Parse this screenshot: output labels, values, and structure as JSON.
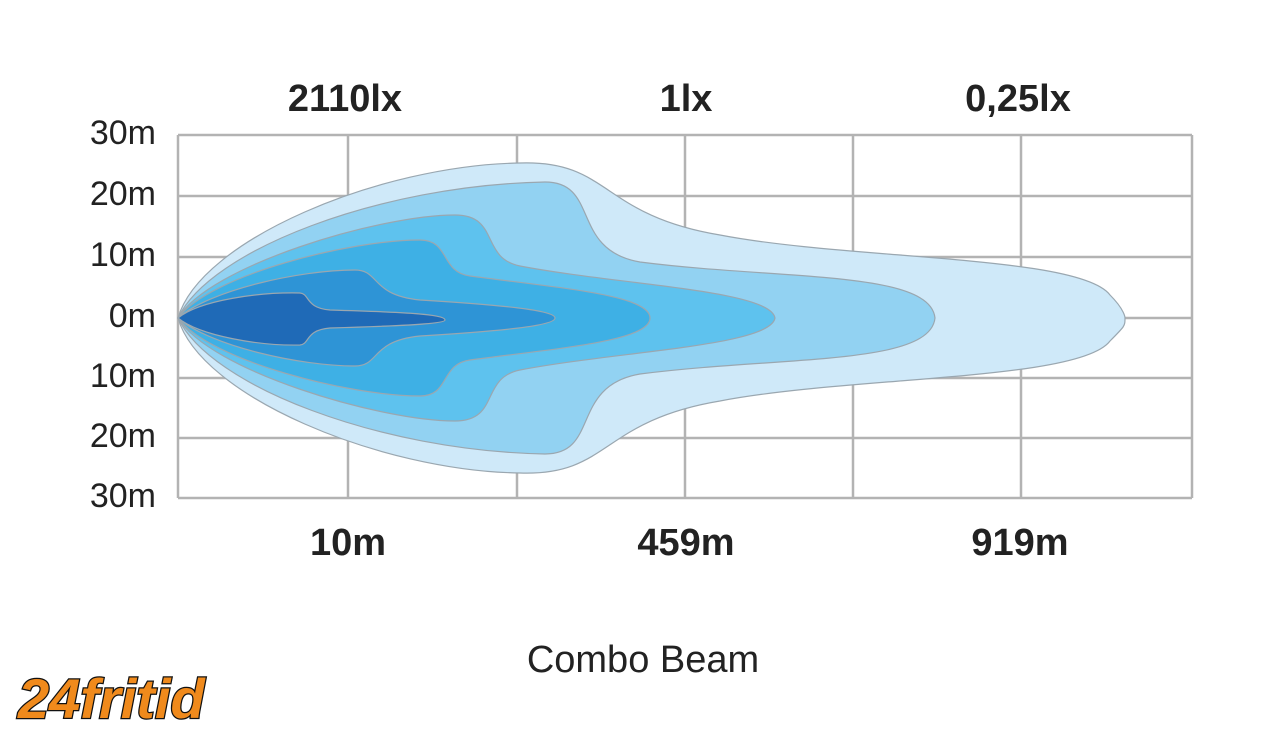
{
  "top_labels": [
    "2110lx",
    "1lx",
    "0,25lx"
  ],
  "y_labels": [
    "30m",
    "20m",
    "10m",
    "0m",
    "10m",
    "20m",
    "30m"
  ],
  "bottom_labels": [
    "10m",
    "459m",
    "919m"
  ],
  "caption": "Combo Beam",
  "logo": "24fritid"
}
